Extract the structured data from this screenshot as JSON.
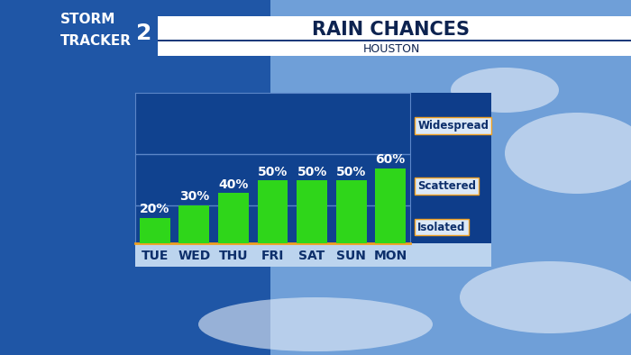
{
  "chart_data": {
    "type": "bar",
    "title": "RAIN CHANCES",
    "subtitle": "HOUSTON",
    "annotations": [
      "STORM",
      "TRACKER",
      "2"
    ],
    "categories": [
      "TUE",
      "WED",
      "THU",
      "FRI",
      "SAT",
      "SUN",
      "MON"
    ],
    "values": [
      20,
      30,
      40,
      50,
      50,
      50,
      60
    ],
    "value_labels": [
      "20%",
      "30%",
      "40%",
      "50%",
      "50%",
      "50%",
      "60%"
    ],
    "data_labels": true,
    "color": "#2fd61a",
    "ylim": [
      0,
      120
    ],
    "yticks": [
      {
        "value": 14,
        "label": "Isolated"
      },
      {
        "value": 47,
        "label": "Scattered"
      },
      {
        "value": 95,
        "label": "Widespread"
      }
    ]
  }
}
